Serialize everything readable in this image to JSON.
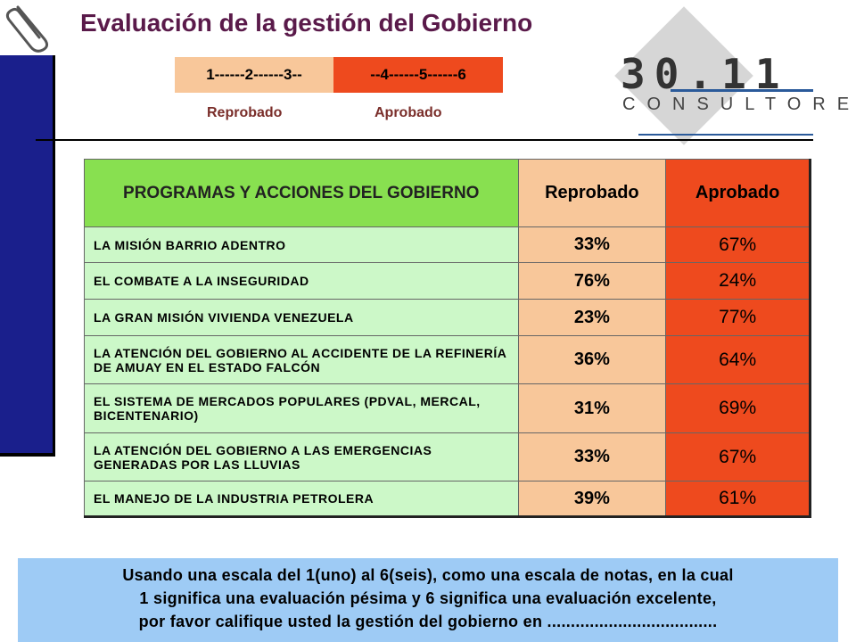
{
  "title": "Evaluación de la gestión del Gobierno",
  "scale": {
    "low_text": "1------2------3--",
    "high_text": "--4------5------6",
    "low_label": "Reprobado",
    "high_label": "Aprobado"
  },
  "logo": {
    "number": "30.11",
    "word": "CONSULTORES"
  },
  "table": {
    "header": {
      "programs": "PROGRAMAS Y ACCIONES DEL GOBIERNO",
      "reprobado": "Reprobado",
      "aprobado": "Aprobado"
    },
    "rows": [
      {
        "label": "LA MISIÓN BARRIO ADENTRO",
        "reprobado": "33%",
        "aprobado": "67%"
      },
      {
        "label": "EL COMBATE A LA INSEGURIDAD",
        "reprobado": "76%",
        "aprobado": "24%"
      },
      {
        "label": "LA GRAN MISIÓN VIVIENDA VENEZUELA",
        "reprobado": "23%",
        "aprobado": "77%"
      },
      {
        "label": "LA ATENCIÓN DEL GOBIERNO AL ACCIDENTE DE LA REFINERÍA DE AMUAY EN EL ESTADO FALCÓN",
        "reprobado": "36%",
        "aprobado": "64%"
      },
      {
        "label": "EL SISTEMA DE MERCADOS POPULARES (PDVAL, MERCAL, BICENTENARIO)",
        "reprobado": "31%",
        "aprobado": "69%"
      },
      {
        "label": "LA ATENCIÓN DEL GOBIERNO A LAS EMERGENCIAS GENERADAS POR LAS LLUVIAS",
        "reprobado": "33%",
        "aprobado": "67%"
      },
      {
        "label": "EL MANEJO DE LA INDUSTRIA PETROLERA",
        "reprobado": "39%",
        "aprobado": "61%"
      }
    ]
  },
  "note": {
    "line1": "Usando una escala del 1(uno) al 6(seis), como una escala de notas, en la cual",
    "line2": "1 significa una evaluación pésima y 6 significa una evaluación excelente,",
    "line3": "por favor califique usted la gestión del gobierno en ...................................."
  },
  "colors": {
    "sidebar": "#1a1f8c",
    "reprobado": "#f8c79a",
    "aprobado": "#ee4a1e",
    "header_green": "#88e050",
    "row_green": "#ccf8c8",
    "note_blue": "#9ecbf5"
  },
  "icons": [
    "paperclip-icon"
  ]
}
